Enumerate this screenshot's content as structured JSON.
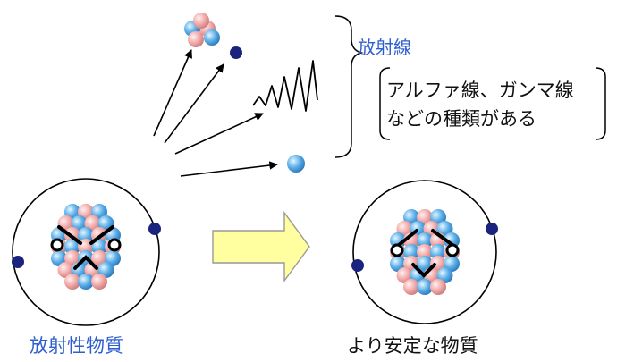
{
  "labels": {
    "radiation_title": "放射線",
    "note_line1": "アルファ線、ガンマ線",
    "note_line2": "などの種類がある",
    "left_caption": "放射性物質",
    "right_caption": "より安定な物質"
  },
  "colors": {
    "accent_blue_text": "#2f5fcf",
    "proton": "#f2a9a9",
    "neutron": "#5aaee8",
    "electron": "#1a237e",
    "arrow_fill": "#ffffa0",
    "arrow_stroke": "#999999"
  },
  "icons": {
    "alpha": "alpha-particle-icon",
    "beta": "electron-particle-icon",
    "gamma": "gamma-wave-icon",
    "neutron": "neutron-particle-icon",
    "transform_arrow": "right-arrow-icon"
  }
}
